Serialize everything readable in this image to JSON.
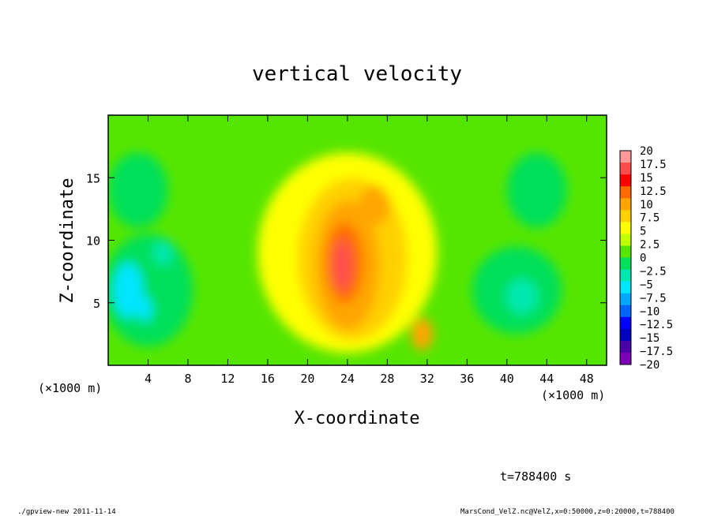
{
  "chart_data": {
    "type": "heatmap",
    "title": "vertical velocity",
    "xlabel": "X-coordinate",
    "ylabel": "Z-coordinate",
    "x_unit_label": "(×1000 m)",
    "x_ticks": [
      4,
      8,
      12,
      16,
      20,
      24,
      28,
      32,
      36,
      40,
      44,
      48
    ],
    "y_ticks": [
      5,
      10,
      15
    ],
    "xlim": [
      0,
      50
    ],
    "ylim": [
      0,
      20
    ],
    "colorbar": {
      "labels": [
        "20",
        "17.5",
        "15",
        "12.5",
        "10",
        "7.5",
        "5",
        "2.5",
        "0",
        "−2.5",
        "−5",
        "−7.5",
        "−10",
        "−12.5",
        "−15",
        "−17.5",
        "−20"
      ],
      "colors": [
        "#ff9a9a",
        "#ff4d4d",
        "#ff0000",
        "#ff6a00",
        "#ffa500",
        "#ffd000",
        "#ffff00",
        "#bfff00",
        "#55e600",
        "#00e05a",
        "#00e8b0",
        "#00e6ff",
        "#00a8ff",
        "#0064ff",
        "#0000ff",
        "#0000c0",
        "#4b00a8",
        "#7b00b8"
      ]
    },
    "features": [
      {
        "name": "updraft core",
        "x": 23.5,
        "z": 8,
        "value": 16
      },
      {
        "name": "upper updraft lobe",
        "x": 26.5,
        "z": 13,
        "value": 10
      },
      {
        "name": "small updraft",
        "x": 31.5,
        "z": 2.5,
        "value": 9
      },
      {
        "name": "left downdraft",
        "x": 2,
        "z": 6,
        "value": -9
      },
      {
        "name": "left downdraft 2",
        "x": 5.5,
        "z": 9,
        "value": -6
      },
      {
        "name": "right downdraft",
        "x": 41,
        "z": 6,
        "value": -6
      }
    ],
    "background_value": 1
  },
  "annotations": {
    "time": "t=788400 s",
    "footer_left": "./gpview-new  2011-11-14",
    "footer_right": "MarsCond_VelZ.nc@VelZ,x=0:50000,z=0:20000,t=788400"
  }
}
